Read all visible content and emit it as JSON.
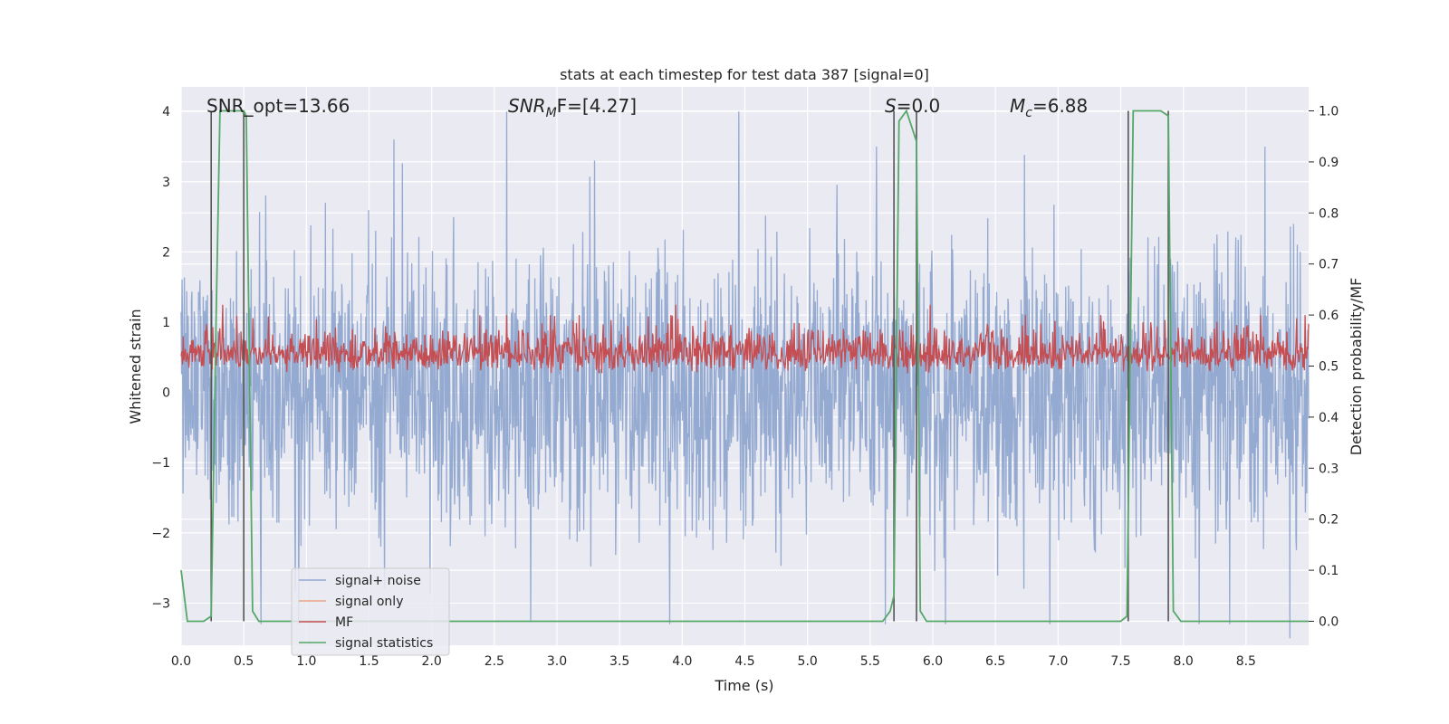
{
  "chart_data": {
    "type": "line",
    "title": "stats at each timestep for test data 387 [signal=0]",
    "xlabel": "Time (s)",
    "ylabel": "Whitened strain",
    "y2label": "Detection probability/MF",
    "xlim": [
      0,
      9.0
    ],
    "ylim": [
      -3.6,
      4.35
    ],
    "y2lim": [
      -0.047,
      1.047
    ],
    "xticks": [
      "0.0",
      "0.5",
      "1.0",
      "1.5",
      "2.0",
      "2.5",
      "3.0",
      "3.5",
      "4.0",
      "4.5",
      "5.0",
      "5.5",
      "6.0",
      "6.5",
      "7.0",
      "7.5",
      "8.0",
      "8.5"
    ],
    "yticks": [
      "4",
      "3",
      "2",
      "1",
      "0",
      "−1",
      "−2",
      "−3"
    ],
    "y2ticks": [
      "1.0",
      "0.9",
      "0.8",
      "0.7",
      "0.6",
      "0.5",
      "0.4",
      "0.3",
      "0.2",
      "0.1",
      "0.0"
    ],
    "grid": true,
    "legend_position": "lower-left",
    "annotations": {
      "snr_opt": "SNR_opt=13.66",
      "snr_mf_var": "SNR",
      "snr_mf_sub": "M",
      "snr_mf_rest": "F=[4.27]",
      "s_var": "S",
      "s_rest": "=0.0",
      "mc_var": "M",
      "mc_sub": "c",
      "mc_rest": "=6.88"
    },
    "legend": [
      "signal+ noise",
      "signal only",
      "MF",
      "signal statistics"
    ],
    "colors": {
      "signal_noise": "#8fa6cf",
      "signal_only": "#e8a888",
      "mf": "#c44e52",
      "signal_statistics": "#55a868",
      "vlines": "#555555",
      "background": "#eaeaf2"
    },
    "series": [
      {
        "name": "signal+ noise",
        "amplitude_envelope_y": [
          -3.3,
          4.0
        ],
        "peak_values": [
          [
            1.7,
            3.6
          ],
          [
            3.3,
            3.3
          ],
          [
            4.45,
            4.0
          ],
          [
            5.55,
            3.5
          ],
          [
            8.65,
            3.5
          ],
          [
            5.62,
            -3.3
          ],
          [
            6.1,
            -3.3
          ],
          [
            8.85,
            -3.5
          ]
        ]
      },
      {
        "name": "signal only",
        "values": []
      },
      {
        "name": "MF",
        "axis": "y2",
        "baseline": 0.5,
        "range": [
          0.45,
          0.62
        ],
        "peak_values": [
          [
            0.33,
            0.62
          ],
          [
            3.95,
            0.62
          ],
          [
            5.98,
            0.62
          ]
        ]
      },
      {
        "name": "signal statistics",
        "axis": "y2",
        "x": [
          0.0,
          0.05,
          0.18,
          0.24,
          0.28,
          0.31,
          0.5,
          0.52,
          0.57,
          0.62,
          0.7,
          5.6,
          5.66,
          5.69,
          5.73,
          5.79,
          5.87,
          5.9,
          5.95,
          6.0,
          6.1,
          7.5,
          7.55,
          7.6,
          7.82,
          7.88,
          7.92,
          7.98,
          8.1,
          9.0
        ],
        "y": [
          0.1,
          0.0,
          0.0,
          0.01,
          0.6,
          1.0,
          1.0,
          0.99,
          0.02,
          0.0,
          0.0,
          0.0,
          0.02,
          0.05,
          0.98,
          1.0,
          0.94,
          0.02,
          0.0,
          0.0,
          0.0,
          0.0,
          0.01,
          1.0,
          1.0,
          0.99,
          0.02,
          0.0,
          0.0,
          0.0
        ]
      }
    ],
    "vertical_lines_x": [
      0.24,
      0.5,
      5.69,
      5.87,
      7.56,
      7.88
    ]
  }
}
